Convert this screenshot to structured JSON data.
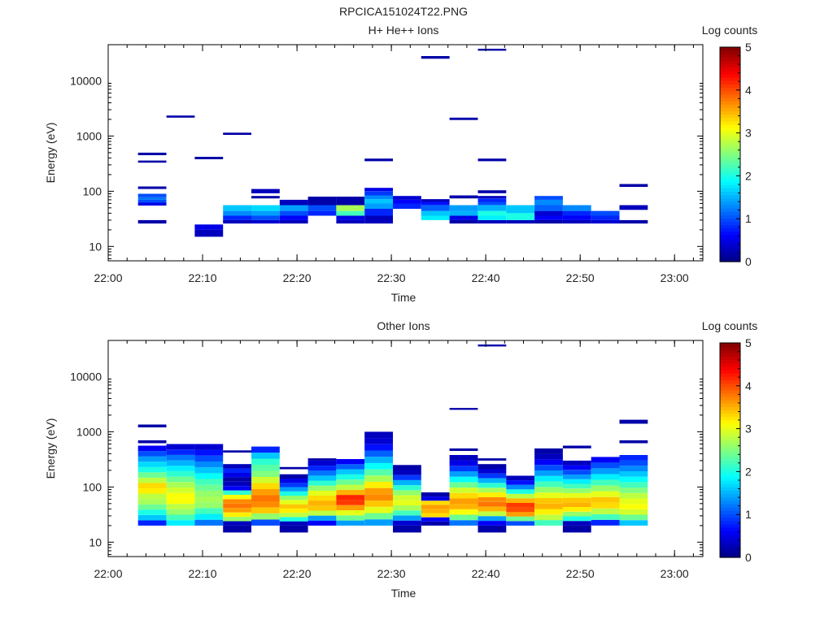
{
  "page_title": "RPCICA151024T22.PNG",
  "chart_data": [
    {
      "type": "heatmap",
      "title": "H+ He++ Ions",
      "xlabel": "Time",
      "ylabel": "Energy (eV)",
      "x_range": [
        "22:00",
        "23:03"
      ],
      "x_ticks": [
        "22:00",
        "22:10",
        "22:20",
        "22:30",
        "22:40",
        "22:50",
        "23:00"
      ],
      "y_scale": "log",
      "ylim": [
        5.5,
        45000
      ],
      "y_ticks": [
        "10",
        "100",
        "1000",
        "10000"
      ],
      "colorbar": {
        "label": "Log counts",
        "range": [
          0,
          5
        ],
        "ticks": [
          "0",
          "1",
          "2",
          "3",
          "4",
          "5"
        ]
      },
      "cells": [
        [
          "22:03:10",
          "22:06:10",
          26,
          30,
          0.2
        ],
        [
          "22:03:10",
          "22:06:10",
          55,
          62,
          0.5
        ],
        [
          "22:03:10",
          "22:06:10",
          62,
          70,
          1.0
        ],
        [
          "22:03:10",
          "22:06:10",
          70,
          78,
          1.2
        ],
        [
          "22:03:10",
          "22:06:10",
          78,
          90,
          1.0
        ],
        [
          "22:03:10",
          "22:06:10",
          110,
          122,
          0.2
        ],
        [
          "22:03:10",
          "22:06:10",
          330,
          360,
          0.2
        ],
        [
          "22:03:10",
          "22:06:10",
          450,
          500,
          0.2
        ],
        [
          "22:06:10",
          "22:09:10",
          2150,
          2350,
          0.2
        ],
        [
          "22:09:10",
          "22:12:10",
          15,
          20,
          0.3
        ],
        [
          "22:09:10",
          "22:12:10",
          20,
          25,
          0.5
        ],
        [
          "22:09:10",
          "22:12:10",
          380,
          420,
          0.2
        ],
        [
          "22:12:10",
          "22:15:10",
          26,
          30,
          0.3
        ],
        [
          "22:12:10",
          "22:15:10",
          30,
          36,
          0.8
        ],
        [
          "22:12:10",
          "22:15:10",
          36,
          44,
          1.3
        ],
        [
          "22:12:10",
          "22:15:10",
          44,
          56,
          1.6
        ],
        [
          "22:12:10",
          "22:15:10",
          1050,
          1150,
          0.2
        ],
        [
          "22:15:10",
          "22:18:10",
          26,
          30,
          0.4
        ],
        [
          "22:15:10",
          "22:18:10",
          30,
          36,
          1.0
        ],
        [
          "22:15:10",
          "22:18:10",
          36,
          44,
          1.4
        ],
        [
          "22:15:10",
          "22:18:10",
          44,
          56,
          1.7
        ],
        [
          "22:15:10",
          "22:18:10",
          74,
          82,
          0.2
        ],
        [
          "22:15:10",
          "22:18:10",
          92,
          110,
          0.3
        ],
        [
          "22:18:10",
          "22:21:10",
          26,
          30,
          0.3
        ],
        [
          "22:18:10",
          "22:21:10",
          30,
          36,
          0.6
        ],
        [
          "22:18:10",
          "22:21:10",
          36,
          44,
          1.0
        ],
        [
          "22:18:10",
          "22:21:10",
          44,
          56,
          1.4
        ],
        [
          "22:18:10",
          "22:21:10",
          56,
          70,
          0.3
        ],
        [
          "22:21:10",
          "22:24:10",
          36,
          44,
          0.8
        ],
        [
          "22:21:10",
          "22:24:10",
          44,
          56,
          1.0
        ],
        [
          "22:21:10",
          "22:24:10",
          56,
          80,
          0.2
        ],
        [
          "22:24:10",
          "22:27:10",
          26,
          30,
          0.3
        ],
        [
          "22:24:10",
          "22:27:10",
          30,
          36,
          0.5
        ],
        [
          "22:24:10",
          "22:27:10",
          36,
          44,
          2.2
        ],
        [
          "22:24:10",
          "22:27:10",
          44,
          56,
          2.7
        ],
        [
          "22:24:10",
          "22:27:10",
          56,
          80,
          0.2
        ],
        [
          "22:27:10",
          "22:30:10",
          26,
          36,
          0.3
        ],
        [
          "22:27:10",
          "22:30:10",
          36,
          48,
          0.8
        ],
        [
          "22:27:10",
          "22:30:10",
          48,
          60,
          1.4
        ],
        [
          "22:27:10",
          "22:30:10",
          60,
          72,
          1.6
        ],
        [
          "22:27:10",
          "22:30:10",
          72,
          84,
          1.3
        ],
        [
          "22:27:10",
          "22:30:10",
          84,
          100,
          0.9
        ],
        [
          "22:27:10",
          "22:30:10",
          100,
          115,
          0.5
        ],
        [
          "22:27:10",
          "22:30:10",
          350,
          390,
          0.2
        ],
        [
          "22:30:10",
          "22:33:10",
          48,
          60,
          0.8
        ],
        [
          "22:30:10",
          "22:33:10",
          60,
          70,
          0.6
        ],
        [
          "22:30:10",
          "22:33:10",
          70,
          82,
          0.4
        ],
        [
          "22:33:10",
          "22:36:10",
          30,
          36,
          1.8
        ],
        [
          "22:33:10",
          "22:36:10",
          36,
          44,
          1.6
        ],
        [
          "22:33:10",
          "22:36:10",
          44,
          56,
          1.1
        ],
        [
          "22:33:10",
          "22:36:10",
          56,
          64,
          0.7
        ],
        [
          "22:33:10",
          "22:36:10",
          64,
          72,
          0.3
        ],
        [
          "22:33:10",
          "22:36:10",
          25000,
          28000,
          0.2
        ],
        [
          "22:36:10",
          "22:39:10",
          26,
          30,
          0.2
        ],
        [
          "22:36:10",
          "22:39:10",
          30,
          36,
          0.5
        ],
        [
          "22:36:10",
          "22:39:10",
          36,
          44,
          1.5
        ],
        [
          "22:36:10",
          "22:39:10",
          44,
          56,
          1.4
        ],
        [
          "22:36:10",
          "22:39:10",
          74,
          84,
          0.2
        ],
        [
          "22:36:10",
          "22:39:10",
          1950,
          2150,
          0.2
        ],
        [
          "22:39:10",
          "22:42:10",
          26,
          30,
          0.3
        ],
        [
          "22:39:10",
          "22:42:10",
          30,
          36,
          1.8
        ],
        [
          "22:39:10",
          "22:42:10",
          36,
          44,
          2.0
        ],
        [
          "22:39:10",
          "22:42:10",
          44,
          56,
          1.5
        ],
        [
          "22:39:10",
          "22:42:10",
          56,
          64,
          1.0
        ],
        [
          "22:39:10",
          "22:42:10",
          64,
          74,
          0.8
        ],
        [
          "22:39:10",
          "22:42:10",
          74,
          82,
          0.3
        ],
        [
          "22:39:10",
          "22:42:10",
          92,
          104,
          0.2
        ],
        [
          "22:39:10",
          "22:42:10",
          350,
          390,
          0.2
        ],
        [
          "22:39:10",
          "22:42:10",
          35000,
          38000,
          0.2
        ],
        [
          "22:42:10",
          "22:45:10",
          26,
          30,
          0.3
        ],
        [
          "22:42:10",
          "22:45:10",
          30,
          40,
          2.0
        ],
        [
          "22:42:10",
          "22:45:10",
          40,
          56,
          1.6
        ],
        [
          "22:45:10",
          "22:48:10",
          26,
          30,
          0.2
        ],
        [
          "22:45:10",
          "22:48:10",
          30,
          36,
          0.6
        ],
        [
          "22:45:10",
          "22:48:10",
          36,
          44,
          0.4
        ],
        [
          "22:45:10",
          "22:48:10",
          44,
          56,
          1.1
        ],
        [
          "22:45:10",
          "22:48:10",
          56,
          70,
          1.3
        ],
        [
          "22:45:10",
          "22:48:10",
          70,
          82,
          1.0
        ],
        [
          "22:48:10",
          "22:51:10",
          26,
          30,
          0.3
        ],
        [
          "22:48:10",
          "22:51:10",
          30,
          36,
          0.6
        ],
        [
          "22:48:10",
          "22:51:10",
          36,
          44,
          0.8
        ],
        [
          "22:48:10",
          "22:51:10",
          44,
          56,
          1.3
        ],
        [
          "22:51:10",
          "22:54:10",
          26,
          30,
          0.4
        ],
        [
          "22:51:10",
          "22:54:10",
          30,
          36,
          0.8
        ],
        [
          "22:51:10",
          "22:54:10",
          36,
          44,
          1.0
        ],
        [
          "22:54:10",
          "22:57:10",
          26,
          30,
          0.2
        ],
        [
          "22:54:10",
          "22:57:10",
          46,
          56,
          0.3
        ],
        [
          "22:54:10",
          "22:57:10",
          120,
          135,
          0.2
        ]
      ]
    },
    {
      "type": "heatmap",
      "title": "Other Ions",
      "xlabel": "Time",
      "ylabel": "Energy (eV)",
      "x_range": [
        "22:00",
        "23:03"
      ],
      "x_ticks": [
        "22:00",
        "22:10",
        "22:20",
        "22:30",
        "22:40",
        "22:50",
        "23:00"
      ],
      "y_scale": "log",
      "ylim": [
        5.5,
        45000
      ],
      "y_ticks": [
        "10",
        "100",
        "1000",
        "10000"
      ],
      "colorbar": {
        "label": "Log counts",
        "range": [
          0,
          5
        ],
        "ticks": [
          "0",
          "1",
          "2",
          "3",
          "4",
          "5"
        ]
      },
      "columns": [
        {
          "t0": "22:03:10",
          "t1": "22:06:10",
          "levels": [
            0.8,
            1.6,
            2.0,
            2.4,
            2.7,
            2.8,
            3.2,
            3.3,
            2.8,
            2.4,
            2.0,
            1.7,
            1.4,
            1.0,
            0.6
          ],
          "emax": 560,
          "extra": [
            [
              620,
              700,
              0.2
            ],
            [
              1200,
              1350,
              0.2
            ]
          ]
        },
        {
          "t0": "22:06:10",
          "t1": "22:09:10",
          "levels": [
            1.8,
            2.2,
            2.6,
            2.8,
            3.1,
            3.1,
            2.9,
            2.7,
            2.4,
            2.1,
            1.8,
            1.5,
            1.2,
            0.8,
            0.4
          ],
          "emax": 600,
          "extra": []
        },
        {
          "t0": "22:09:10",
          "t1": "22:12:10",
          "levels": [
            1.2,
            1.8,
            2.2,
            2.6,
            2.7,
            2.6,
            2.4,
            2.2,
            1.9,
            1.6,
            1.3,
            1.0,
            0.7,
            0.4
          ],
          "emax": 600,
          "extra": []
        },
        {
          "t0": "22:12:10",
          "t1": "22:15:10",
          "levels": [
            0.3,
            2.6,
            3.2,
            3.6,
            3.8,
            3.7,
            3.1,
            2.1,
            0.6,
            0.3,
            0.2,
            0.5,
            0.8,
            0.3
          ],
          "emax": 260,
          "extra": [
            [
              420,
              460,
              0.2
            ]
          ],
          "emin": 15
        },
        {
          "t0": "22:15:10",
          "t1": "22:18:10",
          "levels": [
            1.0,
            2.6,
            3.4,
            3.7,
            3.8,
            3.6,
            3.3,
            2.9,
            2.5,
            2.3,
            2.1,
            1.6,
            0.8
          ],
          "emax": 540,
          "extra": []
        },
        {
          "t0": "22:18:10",
          "t1": "22:21:10",
          "levels": [
            0.3,
            2.0,
            2.8,
            3.2,
            3.4,
            3.0,
            2.6,
            2.0,
            1.4,
            0.9,
            0.5,
            0.2
          ],
          "emax": 170,
          "extra": [
            [
              210,
              230,
              0.2
            ]
          ],
          "emin": 15
        },
        {
          "t0": "22:21:10",
          "t1": "22:24:10",
          "levels": [
            0.6,
            1.4,
            2.8,
            3.4,
            3.5,
            3.3,
            3.0,
            2.6,
            2.1,
            1.6,
            1.2,
            0.8,
            0.4
          ],
          "emax": 300,
          "extra": [
            [
              300,
              330,
              0.2
            ]
          ]
        },
        {
          "t0": "22:24:10",
          "t1": "22:27:10",
          "levels": [
            1.4,
            2.4,
            3.0,
            3.6,
            4.1,
            4.2,
            3.5,
            2.8,
            2.4,
            2.0,
            1.6,
            1.1,
            0.6
          ],
          "emax": 320,
          "extra": []
        },
        {
          "t0": "22:27:10",
          "t1": "22:30:10",
          "levels": [
            1.4,
            2.4,
            3.0,
            3.4,
            3.7,
            3.6,
            3.2,
            2.7,
            2.3,
            1.9,
            1.5,
            1.1,
            0.7,
            0.4,
            0.3
          ],
          "emax": 1000,
          "extra": []
        },
        {
          "t0": "22:30:10",
          "t1": "22:33:10",
          "levels": [
            0.4,
            1.4,
            2.2,
            2.7,
            3.0,
            2.9,
            2.6,
            2.1,
            1.5,
            0.9,
            0.3,
            0.2
          ],
          "emax": 250,
          "extra": [],
          "emin": 15
        },
        {
          "t0": "22:33:10",
          "t1": "22:36:10",
          "levels": [
            0.2,
            0.6,
            3.3,
            3.5,
            3.6,
            3.3,
            0.5,
            0.2
          ],
          "emax": 80,
          "extra": []
        },
        {
          "t0": "22:36:10",
          "t1": "22:39:10",
          "levels": [
            1.2,
            2.4,
            3.1,
            3.5,
            3.6,
            3.3,
            2.9,
            2.4,
            1.9,
            1.4,
            0.9,
            0.5,
            0.3
          ],
          "emax": 380,
          "extra": [
            [
              450,
              500,
              0.2
            ],
            [
              2500,
              2700,
              0.2
            ]
          ]
        },
        {
          "t0": "22:39:10",
          "t1": "22:42:10",
          "levels": [
            0.6,
            1.4,
            2.8,
            3.5,
            3.8,
            3.7,
            3.2,
            2.7,
            2.1,
            1.5,
            0.9,
            0.4,
            0.2
          ],
          "emax": 260,
          "extra": [
            [
              300,
              330,
              0.2
            ],
            [
              35000,
              38000,
              0.2
            ]
          ],
          "emin": 15
        },
        {
          "t0": "22:42:10",
          "t1": "22:45:10",
          "levels": [
            1.0,
            2.4,
            3.6,
            4.0,
            4.1,
            3.5,
            2.8,
            2.0,
            1.3,
            0.7,
            0.3
          ],
          "emax": 160,
          "extra": []
        },
        {
          "t0": "22:45:10",
          "t1": "22:48:10",
          "levels": [
            2.2,
            2.8,
            3.2,
            3.5,
            3.4,
            3.0,
            2.6,
            2.2,
            1.8,
            1.4,
            1.0,
            0.6,
            0.3,
            0.2
          ],
          "emax": 500,
          "extra": []
        },
        {
          "t0": "22:48:10",
          "t1": "22:51:10",
          "levels": [
            0.3,
            2.0,
            2.6,
            3.2,
            3.5,
            3.4,
            3.0,
            2.6,
            2.2,
            1.8,
            1.4,
            1.0,
            0.6,
            0.3
          ],
          "emax": 300,
          "extra": [
            [
              500,
              560,
              0.2
            ]
          ],
          "emin": 15
        },
        {
          "t0": "22:51:10",
          "t1": "22:54:10",
          "levels": [
            0.8,
            2.2,
            2.8,
            3.3,
            3.4,
            3.0,
            2.6,
            2.2,
            1.8,
            1.4,
            1.0,
            0.6
          ],
          "emax": 350,
          "extra": []
        },
        {
          "t0": "22:54:10",
          "t1": "22:57:10",
          "levels": [
            1.6,
            2.4,
            2.9,
            3.1,
            3.0,
            2.8,
            2.5,
            2.2,
            1.9,
            1.6,
            1.3,
            1.0,
            0.8
          ],
          "emax": 380,
          "extra": [
            [
              620,
              700,
              0.2
            ],
            [
              1400,
              1650,
              0.2
            ]
          ]
        }
      ]
    }
  ]
}
